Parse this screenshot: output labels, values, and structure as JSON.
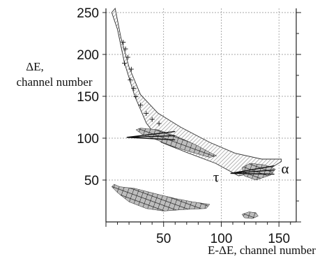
{
  "chart_data": {
    "type": "scatter",
    "title": "",
    "xlabel": "E-ΔE, channel number",
    "ylabel_lines": [
      "ΔE,",
      "channel number"
    ],
    "xlim": [
      0,
      165
    ],
    "ylim": [
      0,
      255
    ],
    "x_ticks": [
      50,
      100,
      150
    ],
    "y_ticks": [
      50,
      100,
      150,
      200,
      250
    ],
    "grid": true,
    "region_labels": [
      {
        "text": "τ",
        "x": 93,
        "y": 48
      },
      {
        "text": "α",
        "x": 152,
        "y": 58
      }
    ],
    "identification_bands": [
      {
        "name": "",
        "upper": [
          [
            8,
            255
          ],
          [
            13,
            220
          ],
          [
            20,
            185
          ],
          [
            30,
            152
          ],
          [
            45,
            130
          ],
          [
            65,
            113
          ],
          [
            90,
            95
          ],
          [
            112,
            82
          ],
          [
            135,
            75
          ],
          [
            152,
            75
          ]
        ],
        "lower": [
          [
            152,
            72
          ],
          [
            140,
            62
          ],
          [
            115,
            55
          ],
          [
            95,
            70
          ],
          [
            70,
            83
          ],
          [
            48,
            95
          ],
          [
            35,
            118
          ],
          [
            25,
            150
          ],
          [
            16,
            190
          ],
          [
            10,
            230
          ],
          [
            5,
            250
          ]
        ]
      }
    ],
    "scatter_clusters": [
      {
        "name": "",
        "outline": [
          [
            30,
            112
          ],
          [
            45,
            110
          ],
          [
            60,
            103
          ],
          [
            78,
            92
          ],
          [
            90,
            83
          ],
          [
            96,
            79
          ],
          [
            90,
            77
          ],
          [
            75,
            83
          ],
          [
            58,
            90
          ],
          [
            44,
            98
          ],
          [
            32,
            104
          ],
          [
            26,
            110
          ]
        ]
      },
      {
        "name": "",
        "outline": [
          [
            118,
            65
          ],
          [
            125,
            70
          ],
          [
            138,
            68
          ],
          [
            147,
            63
          ],
          [
            143,
            56
          ],
          [
            130,
            50
          ],
          [
            120,
            55
          ]
        ]
      },
      {
        "name": "",
        "outline": [
          [
            7,
            45
          ],
          [
            12,
            42
          ],
          [
            25,
            40
          ],
          [
            45,
            33
          ],
          [
            60,
            28
          ],
          [
            75,
            24
          ],
          [
            90,
            21
          ],
          [
            87,
            16
          ],
          [
            70,
            15
          ],
          [
            50,
            13
          ],
          [
            35,
            16
          ],
          [
            20,
            24
          ],
          [
            10,
            35
          ],
          [
            5,
            42
          ]
        ]
      },
      {
        "name": "",
        "outline": [
          [
            118,
            9
          ],
          [
            124,
            12
          ],
          [
            130,
            11
          ],
          [
            132,
            7
          ],
          [
            127,
            4
          ],
          [
            120,
            5
          ]
        ]
      }
    ],
    "point_marks": [
      {
        "x": 15,
        "y": 215
      },
      {
        "x": 17,
        "y": 207
      },
      {
        "x": 19,
        "y": 197
      },
      {
        "x": 16,
        "y": 190
      },
      {
        "x": 22,
        "y": 183
      },
      {
        "x": 21,
        "y": 170
      },
      {
        "x": 24,
        "y": 160
      },
      {
        "x": 26,
        "y": 150
      },
      {
        "x": 30,
        "y": 140
      },
      {
        "x": 35,
        "y": 130
      },
      {
        "x": 40,
        "y": 123
      },
      {
        "x": 46,
        "y": 118
      }
    ],
    "pointer_lines": [
      {
        "from": [
          18,
          101
        ],
        "to": [
          60,
          103
        ],
        "tip_spread": 5
      },
      {
        "from": [
          108,
          58
        ],
        "to": [
          146,
          62
        ],
        "tip_spread": 5
      }
    ]
  }
}
